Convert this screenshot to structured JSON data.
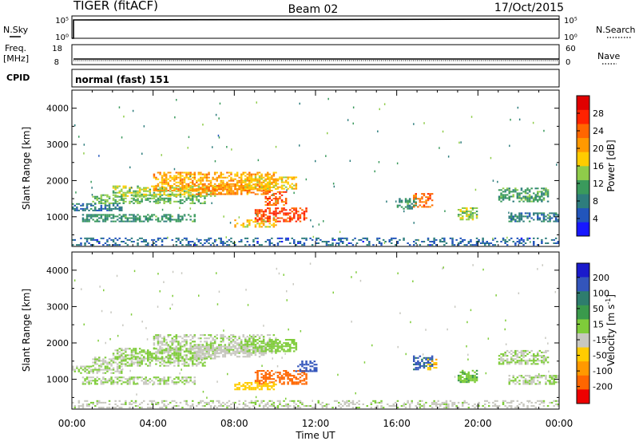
{
  "header": {
    "radar": "TIGER (fitACF)",
    "beam": "Beam 02",
    "date": "17/Oct/2015"
  },
  "top_panels": {
    "nsky": {
      "label": "N.Sky",
      "ticks": [
        "10^5",
        "10^0"
      ]
    },
    "nsearch": {
      "label": "N.Search",
      "ticks": [
        "10^5",
        "10^0"
      ]
    },
    "freq": {
      "label_line1": "Freq.",
      "label_line2": "[MHz]",
      "ticks": [
        "18",
        "8"
      ]
    },
    "nave": {
      "label": "Nave",
      "ticks": [
        "60",
        "0"
      ]
    },
    "cpid": {
      "label": "CPID",
      "text": "normal (fast) 151"
    }
  },
  "chart_data": [
    {
      "type": "heatmap",
      "panel": "power",
      "xlabel": "",
      "ylabel": "Slant Range [km]",
      "xlim": [
        0,
        24
      ],
      "ylim": [
        180,
        4500
      ],
      "yticks": [
        1000,
        2000,
        3000,
        4000
      ],
      "colorbar": {
        "label": "Power [dB]",
        "range": [
          0,
          32
        ],
        "tick_labels": [
          "4",
          "8",
          "12",
          "16",
          "20",
          "24",
          "28"
        ],
        "colors": [
          "#1717ff",
          "#2255bb",
          "#2e7d7d",
          "#3a9a5c",
          "#8fcc4a",
          "#ffcc00",
          "#ff9900",
          "#ff6600",
          "#ff2200",
          "#e00000"
        ]
      },
      "regions": [
        {
          "t": [
            0.0,
            2.5
          ],
          "r": [
            1150,
            1350
          ],
          "db": 7
        },
        {
          "t": [
            0.5,
            6.0
          ],
          "r": [
            850,
            1050
          ],
          "db": 10
        },
        {
          "t": [
            1.0,
            6.5
          ],
          "r": [
            1350,
            1600
          ],
          "db": 13
        },
        {
          "t": [
            2.0,
            7.0
          ],
          "r": [
            1550,
            1850
          ],
          "db": 15
        },
        {
          "t": [
            4.0,
            10.0
          ],
          "r": [
            1700,
            2200
          ],
          "db": 20
        },
        {
          "t": [
            6.0,
            9.5
          ],
          "r": [
            1600,
            1900
          ],
          "db": 22
        },
        {
          "t": [
            8.5,
            11.0
          ],
          "r": [
            1750,
            2100
          ],
          "db": 18
        },
        {
          "t": [
            9.0,
            11.5
          ],
          "r": [
            850,
            1250
          ],
          "db": 26
        },
        {
          "t": [
            8.0,
            10.0
          ],
          "r": [
            700,
            900
          ],
          "db": 18
        },
        {
          "t": [
            9.5,
            10.5
          ],
          "r": [
            1300,
            1700
          ],
          "db": 24
        },
        {
          "t": [
            16.8,
            17.8
          ],
          "r": [
            1250,
            1650
          ],
          "db": 25
        },
        {
          "t": [
            16.0,
            17.0
          ],
          "r": [
            1200,
            1500
          ],
          "db": 10
        },
        {
          "t": [
            19.0,
            20.0
          ],
          "r": [
            900,
            1250
          ],
          "db": 14
        },
        {
          "t": [
            21.0,
            23.5
          ],
          "r": [
            1400,
            1800
          ],
          "db": 11
        },
        {
          "t": [
            21.5,
            24.0
          ],
          "r": [
            850,
            1100
          ],
          "db": 8
        },
        {
          "t": [
            0.0,
            24.0
          ],
          "r": [
            200,
            420
          ],
          "db": 6
        }
      ]
    },
    {
      "type": "heatmap",
      "panel": "velocity",
      "xlabel": "Time UT",
      "ylabel": "Slant Range [km]",
      "xlim": [
        0,
        24
      ],
      "ylim": [
        180,
        4500
      ],
      "xticks": [
        0,
        4,
        8,
        12,
        16,
        20,
        24
      ],
      "xtick_labels": [
        "00:00",
        "04:00",
        "08:00",
        "12:00",
        "16:00",
        "20:00",
        "00:00"
      ],
      "yticks": [
        1000,
        2000,
        3000,
        4000
      ],
      "colorbar": {
        "label": "Velocity [m s^-1]",
        "range": [
          -250,
          250
        ],
        "tick_labels": [
          "200",
          "100",
          "50",
          "15",
          "-15",
          "-50",
          "-100",
          "-200"
        ],
        "colors": [
          "#1a1acc",
          "#3355bb",
          "#2e7d6e",
          "#3a9a4c",
          "#7fcc3a",
          "#c8c8c0",
          "#ffcc00",
          "#ff9900",
          "#ff6600",
          "#ee0000"
        ]
      },
      "regions": [
        {
          "t": [
            0.0,
            2.5
          ],
          "r": [
            1150,
            1350
          ],
          "v": 0
        },
        {
          "t": [
            0.5,
            6.0
          ],
          "r": [
            850,
            1050
          ],
          "v": 0
        },
        {
          "t": [
            1.0,
            6.5
          ],
          "r": [
            1350,
            1600
          ],
          "v": 0
        },
        {
          "t": [
            2.0,
            7.0
          ],
          "r": [
            1550,
            1850
          ],
          "v": 5
        },
        {
          "t": [
            4.0,
            10.0
          ],
          "r": [
            1700,
            2200
          ],
          "v": -5
        },
        {
          "t": [
            6.0,
            9.5
          ],
          "r": [
            1600,
            1900
          ],
          "v": -20
        },
        {
          "t": [
            8.5,
            11.0
          ],
          "r": [
            1750,
            2100
          ],
          "v": 30
        },
        {
          "t": [
            9.0,
            11.5
          ],
          "r": [
            850,
            1250
          ],
          "v": -180
        },
        {
          "t": [
            8.0,
            10.0
          ],
          "r": [
            700,
            900
          ],
          "v": -80
        },
        {
          "t": [
            11.0,
            12.0
          ],
          "r": [
            1200,
            1500
          ],
          "v": 180
        },
        {
          "t": [
            16.8,
            17.8
          ],
          "r": [
            1250,
            1650
          ],
          "v": 160
        },
        {
          "t": [
            17.5,
            18.0
          ],
          "r": [
            1250,
            1550
          ],
          "v": -90
        },
        {
          "t": [
            19.0,
            20.0
          ],
          "r": [
            900,
            1250
          ],
          "v": 40
        },
        {
          "t": [
            21.0,
            23.5
          ],
          "r": [
            1400,
            1800
          ],
          "v": 0
        },
        {
          "t": [
            21.5,
            24.0
          ],
          "r": [
            850,
            1100
          ],
          "v": 0
        },
        {
          "t": [
            0.0,
            24.0
          ],
          "r": [
            200,
            420
          ],
          "v": -10
        }
      ]
    }
  ]
}
